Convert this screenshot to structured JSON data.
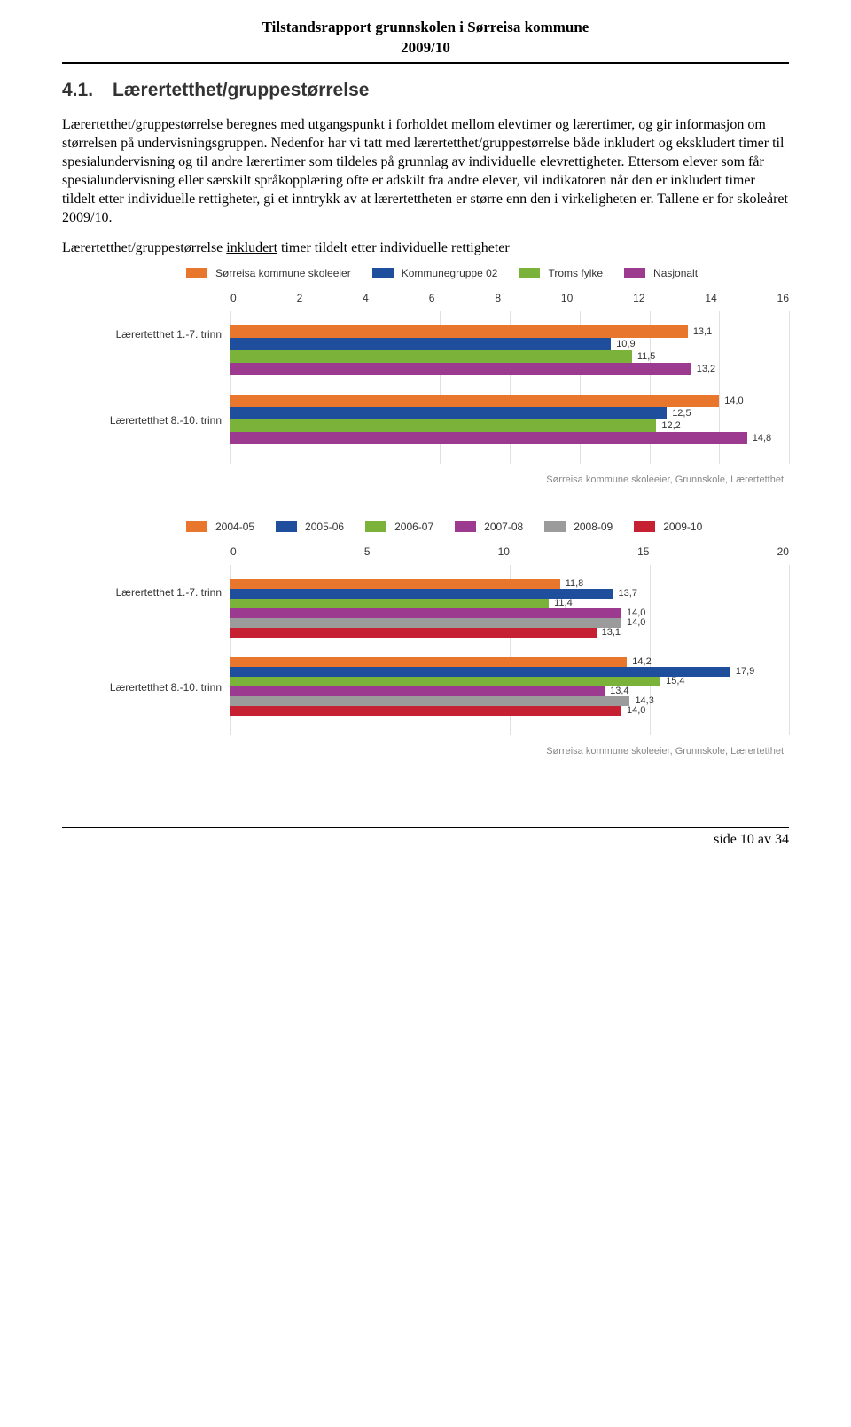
{
  "header": {
    "line1": "Tilstandsrapport grunnskolen i Sørreisa kommune",
    "line2": "2009/10"
  },
  "section": {
    "number": "4.1.",
    "title": "Lærertetthet/gruppestørrelse"
  },
  "paragraph1": "Lærertetthet/gruppestørrelse beregnes med utgangspunkt i forholdet mellom elevtimer og lærertimer, og gir informasjon om størrelsen på undervisningsgruppen. Nedenfor har vi tatt med lærertetthet/gruppestørrelse både inkludert og ekskludert timer til spesialundervisning og til andre lærertimer som tildeles på grunnlag av individuelle elevrettigheter. Ettersom elever som får spesialundervisning eller særskilt språkopplæring ofte er adskilt fra andre elever, vil indikatoren når den er inkludert timer tildelt etter individuelle rettigheter, gi et inntrykk av at lærertettheten er større enn den i virkeligheten er. Tallene er for skoleåret 2009/10.",
  "sub_heading": {
    "prefix": "Lærertetthet/gruppestørrelse ",
    "underlined": "inkludert",
    "suffix": " timer tildelt etter individuelle rettigheter"
  },
  "colors": {
    "orange": "#e8762c",
    "blue": "#1f4e9c",
    "green": "#7bb33a",
    "purple": "#9b3a8f",
    "grey": "#9b9b9b",
    "red": "#c62033",
    "grid": "#e0e0e0",
    "caption": "#888888"
  },
  "chart1": {
    "legend": [
      {
        "color_key": "orange",
        "label": "Sørreisa kommune skoleeier"
      },
      {
        "color_key": "blue",
        "label": "Kommunegruppe 02"
      },
      {
        "color_key": "green",
        "label": "Troms fylke"
      },
      {
        "color_key": "purple",
        "label": "Nasjonalt"
      }
    ],
    "xmax": 16,
    "xticks": [
      "0",
      "2",
      "4",
      "6",
      "8",
      "10",
      "12",
      "14",
      "16"
    ],
    "groups": [
      {
        "label": "Lærertetthet 1.-7. trinn",
        "bars": [
          {
            "color_key": "orange",
            "value": 13.1,
            "label": "13,1"
          },
          {
            "color_key": "blue",
            "value": 10.9,
            "label": "10,9"
          },
          {
            "color_key": "green",
            "value": 11.5,
            "label": "11,5"
          },
          {
            "color_key": "purple",
            "value": 13.2,
            "label": "13,2"
          }
        ]
      },
      {
        "label": "Lærertetthet 8.-10. trinn",
        "bars": [
          {
            "color_key": "orange",
            "value": 14.0,
            "label": "14,0"
          },
          {
            "color_key": "blue",
            "value": 12.5,
            "label": "12,5"
          },
          {
            "color_key": "green",
            "value": 12.2,
            "label": "12,2"
          },
          {
            "color_key": "purple",
            "value": 14.8,
            "label": "14,8"
          }
        ]
      }
    ],
    "caption": "Sørreisa kommune skoleeier, Grunnskole, Lærertetthet"
  },
  "chart2": {
    "legend": [
      {
        "color_key": "orange",
        "label": "2004-05"
      },
      {
        "color_key": "blue",
        "label": "2005-06"
      },
      {
        "color_key": "green",
        "label": "2006-07"
      },
      {
        "color_key": "purple",
        "label": "2007-08"
      },
      {
        "color_key": "grey",
        "label": "2008-09"
      },
      {
        "color_key": "red",
        "label": "2009-10"
      }
    ],
    "xmax": 20,
    "xticks": [
      "0",
      "5",
      "10",
      "15",
      "20"
    ],
    "groups": [
      {
        "label": "Lærertetthet 1.-7. trinn",
        "bars": [
          {
            "color_key": "orange",
            "value": 11.8,
            "label": "11,8"
          },
          {
            "color_key": "blue",
            "value": 13.7,
            "label": "13,7"
          },
          {
            "color_key": "green",
            "value": 11.4,
            "label": "11,4"
          },
          {
            "color_key": "purple",
            "value": 14.0,
            "label": "14,0"
          },
          {
            "color_key": "grey",
            "value": 14.0,
            "label": "14,0"
          },
          {
            "color_key": "red",
            "value": 13.1,
            "label": "13,1"
          }
        ]
      },
      {
        "label": "Lærertetthet 8.-10. trinn",
        "bars": [
          {
            "color_key": "orange",
            "value": 14.2,
            "label": "14,2"
          },
          {
            "color_key": "blue",
            "value": 17.9,
            "label": "17,9"
          },
          {
            "color_key": "green",
            "value": 15.4,
            "label": "15,4"
          },
          {
            "color_key": "purple",
            "value": 13.4,
            "label": "13,4"
          },
          {
            "color_key": "grey",
            "value": 14.3,
            "label": "14,3"
          },
          {
            "color_key": "red",
            "value": 14.0,
            "label": "14,0"
          }
        ]
      }
    ],
    "caption": "Sørreisa kommune skoleeier, Grunnskole, Lærertetthet"
  },
  "footer": "side 10 av 34"
}
